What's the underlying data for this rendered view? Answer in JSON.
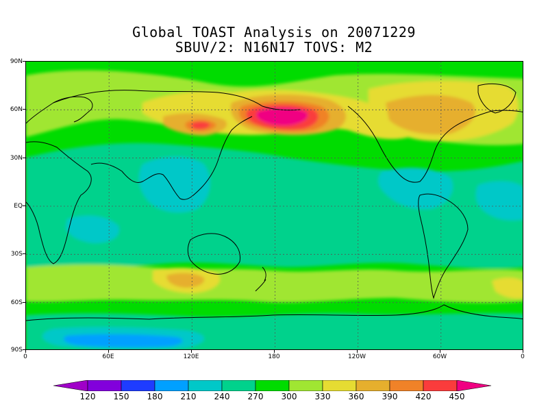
{
  "title": {
    "line1": "Global TOAST Analysis on 20071229",
    "line2": "SBUV/2: N16N17  TOVS: M2"
  },
  "map": {
    "projection": "cylindrical equidistant",
    "central_longitude": 180,
    "lat_labels": [
      "90N",
      "60N",
      "30N",
      "EQ",
      "30S",
      "60S",
      "90S"
    ],
    "lon_labels": [
      "0",
      "60E",
      "120E",
      "180",
      "120W",
      "60W",
      "0"
    ],
    "gridlines": "dotted",
    "field": "total column ozone",
    "features": [
      {
        "name": "ozone maximum over North Pacific / Bering Sea",
        "value_range": "> 450"
      },
      {
        "name": "secondary maximum over northeast Asia",
        "value_range": "390-450"
      },
      {
        "name": "elevated ozone over northern Canada",
        "value_range": "360-420"
      },
      {
        "name": "low ozone over Antarctica",
        "value_range": "180-240"
      },
      {
        "name": "tropical belt",
        "value_range": "240-270"
      }
    ]
  },
  "colorbar": {
    "levels": [
      "120",
      "150",
      "180",
      "210",
      "240",
      "270",
      "300",
      "330",
      "360",
      "390",
      "420",
      "450"
    ],
    "colors": [
      "#a000c8",
      "#8200dc",
      "#1e3cff",
      "#00a0ff",
      "#00c8c8",
      "#00d28c",
      "#00dc00",
      "#a0e632",
      "#e6dc32",
      "#e6af2d",
      "#f08228",
      "#fa3c3c",
      "#f00082"
    ],
    "arrow_ends": true
  }
}
